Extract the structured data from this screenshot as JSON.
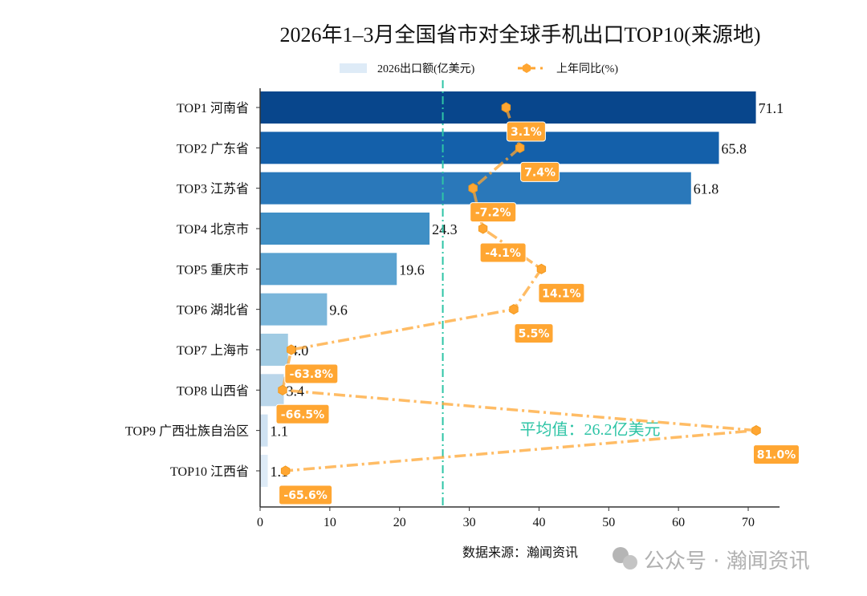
{
  "chart_data": {
    "type": "bar",
    "orientation": "horizontal",
    "title": "2026年1–3月全国省市对全球手机出口TOP10(来源地)",
    "categories": [
      "TOP1 河南省",
      "TOP2 广东省",
      "TOP3 江苏省",
      "TOP4 北京市",
      "TOP5 重庆市",
      "TOP6 湖北省",
      "TOP7 上海市",
      "TOP8 山西省",
      "TOP9 广西壮族自治区",
      "TOP10 江西省"
    ],
    "series": [
      {
        "name": "2026出口额(亿美元)",
        "type": "bar",
        "values": [
          71.1,
          65.8,
          61.8,
          24.3,
          19.6,
          9.6,
          4.0,
          3.4,
          1.1,
          1.1
        ],
        "value_labels": [
          "71.1",
          "65.8",
          "61.8",
          "24.3",
          "19.6",
          "9.6",
          "4.0",
          "3.4",
          "1.1",
          "1.1"
        ]
      },
      {
        "name": "上年同比(%)",
        "type": "line",
        "style": "dash-dot",
        "marker": "hexagon",
        "values": [
          3.1,
          7.4,
          -7.2,
          -4.1,
          14.1,
          5.5,
          -63.8,
          -66.5,
          81.0,
          -65.6
        ],
        "value_labels": [
          "3.1%",
          "7.4%",
          "-7.2%",
          "-4.1%",
          "14.1%",
          "5.5%",
          "-63.8%",
          "-66.5%",
          "81.0%",
          "-65.6%"
        ],
        "color": "#ffa632"
      }
    ],
    "bar_colors": [
      "#08468c",
      "#1460aa",
      "#2a78ba",
      "#3f8fc5",
      "#5aa2d0",
      "#7ab6da",
      "#a0cbe3",
      "#bad6ea",
      "#cfe2f2",
      "#deebf7"
    ],
    "xlim": [
      0,
      75
    ],
    "xticks": [
      "0",
      "10",
      "20",
      "30",
      "40",
      "50",
      "60",
      "70"
    ],
    "grid": false,
    "legend": "top-center",
    "average_line": {
      "value": 26.2,
      "label": "平均值：26.2亿美元",
      "color": "#2ec4a6"
    },
    "source": "数据来源：瀚闻资讯"
  },
  "watermark": "公众号 · 瀚闻资讯"
}
